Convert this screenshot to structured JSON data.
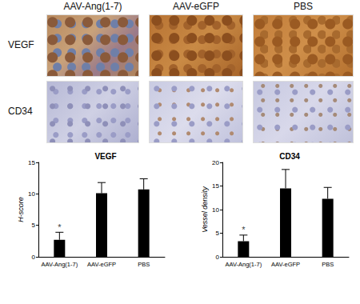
{
  "panels": {
    "columns": [
      "AAV-Ang(1-7)",
      "AAV-eGFP",
      "PBS"
    ],
    "rows": [
      "VEGF",
      "CD34"
    ]
  },
  "chart_data": [
    {
      "type": "bar",
      "title": "VEGF",
      "ylabel": "H-score",
      "categories": [
        "AAV-Ang(1-7)",
        "AAV-eGFP",
        "PBS"
      ],
      "values": [
        2.7,
        10.1,
        10.7
      ],
      "errors": [
        1.2,
        1.7,
        1.7
      ],
      "color": "#000000",
      "ylim": [
        0,
        15
      ],
      "yticks": [
        0,
        5,
        10,
        15
      ],
      "grid": false,
      "annotations": [
        {
          "category": "AAV-Ang(1-7)",
          "text": "*"
        }
      ]
    },
    {
      "type": "bar",
      "title": "CD34",
      "ylabel": "Vessel density",
      "categories": [
        "AAV-Ang(1-7)",
        "AAV-eGFP",
        "PBS"
      ],
      "values": [
        3.3,
        14.5,
        12.3
      ],
      "errors": [
        1.3,
        4.0,
        2.4
      ],
      "color": "#000000",
      "ylim": [
        0,
        20
      ],
      "yticks": [
        0,
        5,
        10,
        15,
        20
      ],
      "grid": false,
      "annotations": [
        {
          "category": "AAV-Ang(1-7)",
          "text": "*"
        }
      ]
    }
  ]
}
